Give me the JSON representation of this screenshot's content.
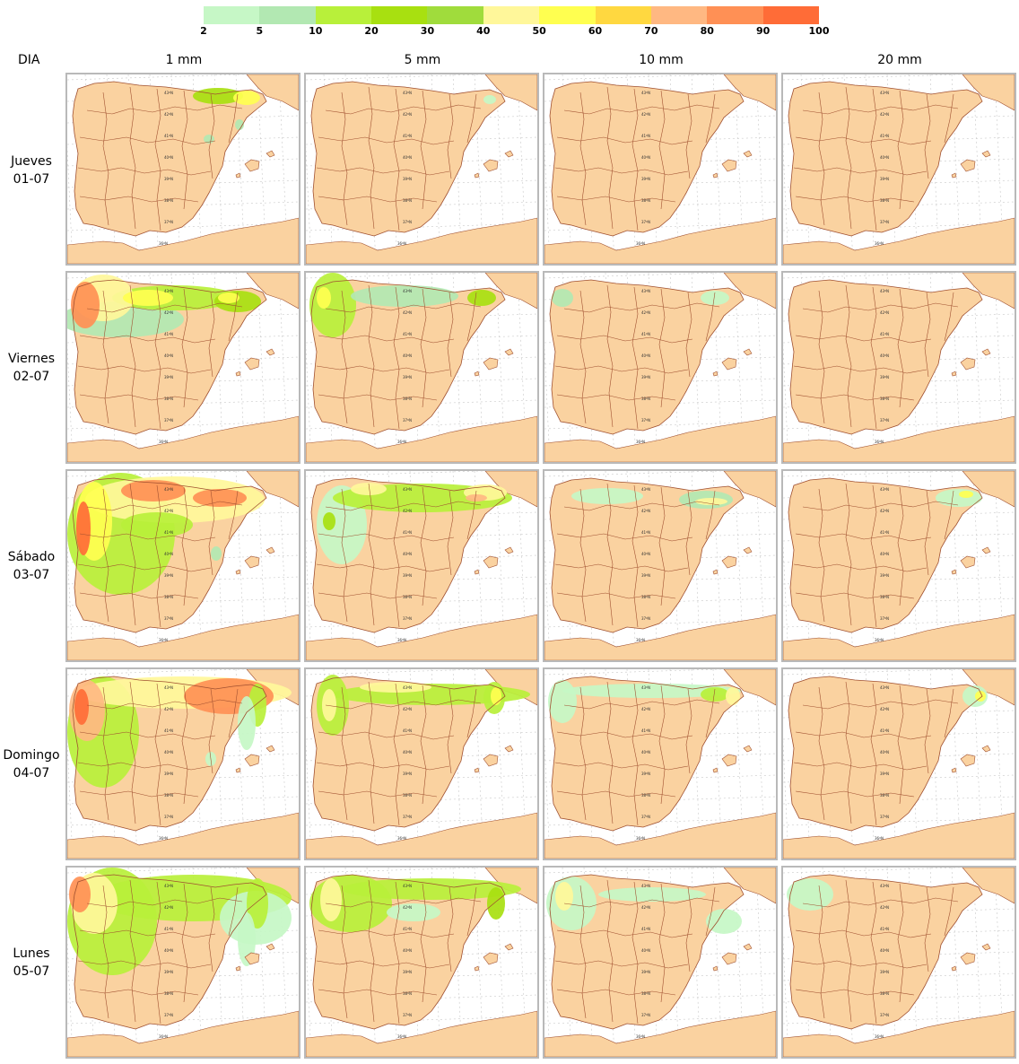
{
  "legend": {
    "colors": [
      "#c6f7c6",
      "#b2e8b2",
      "#b8f03a",
      "#a8e010",
      "#a0dc3c",
      "#fff79a",
      "#ffff50",
      "#ffd840",
      "#ffb882",
      "#ff9055",
      "#ff6c37"
    ],
    "ticks": [
      "2",
      "5",
      "10",
      "20",
      "30",
      "40",
      "50",
      "60",
      "70",
      "80",
      "90",
      "100"
    ]
  },
  "header": {
    "row_heading": "DIA",
    "columns": [
      "1 mm",
      "5 mm",
      "10 mm",
      "20 mm"
    ]
  },
  "rows": [
    {
      "day": "Jueves",
      "date": "01-07"
    },
    {
      "day": "Viernes",
      "date": "02-07"
    },
    {
      "day": "Sábado",
      "date": "03-07"
    },
    {
      "day": "Domingo",
      "date": "04-07"
    },
    {
      "day": "Lunes",
      "date": "05-07"
    }
  ],
  "map": {
    "land_color": "#fad2a0",
    "border_color": "#a05030",
    "grid_color": "#c8c8c8",
    "lat_labels": [
      "43ºN",
      "42ºN",
      "41ºN",
      "40ºN",
      "39ºN",
      "38ºN",
      "37ºN",
      "36ºN"
    ]
  }
}
